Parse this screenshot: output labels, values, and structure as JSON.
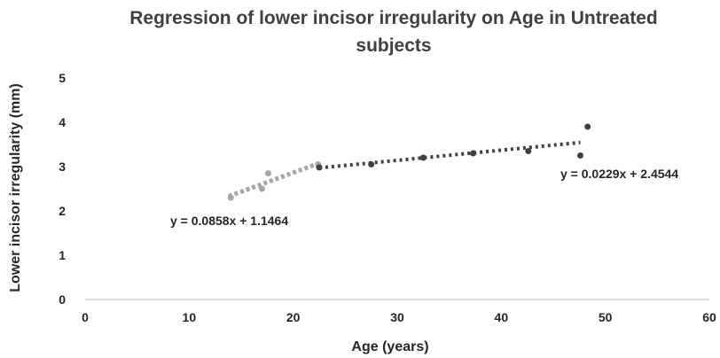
{
  "chart_data": {
    "type": "scatter",
    "title_lines": [
      "Regression of lower incisor irregularity  on Age in Untreated",
      "subjects"
    ],
    "xlabel": "Age (years)",
    "ylabel": "Lower incisor irregularity (mm)",
    "xlim": [
      0,
      60
    ],
    "ylim": [
      0,
      5
    ],
    "x_ticks": [
      "0",
      "10",
      "20",
      "30",
      "40",
      "50",
      "60"
    ],
    "y_ticks": [
      "0",
      "1",
      "2",
      "3",
      "4",
      "5"
    ],
    "grid": false,
    "legend": "none",
    "series": [
      {
        "color": "#a6a6a6",
        "points": [
          {
            "x": 14.0,
            "y": 2.3
          },
          {
            "x": 17.0,
            "y": 2.5
          },
          {
            "x": 17.6,
            "y": 2.85
          },
          {
            "x": 22.4,
            "y": 3.05
          }
        ],
        "trendline": {
          "slope": 0.0858,
          "intercept": 1.1464,
          "x_range": [
            13.8,
            22.6
          ],
          "style": "dotted"
        },
        "equation_label": "y = 0.0858x + 1.1464"
      },
      {
        "color": "#404040",
        "points": [
          {
            "x": 22.5,
            "y": 2.98
          },
          {
            "x": 27.5,
            "y": 3.05
          },
          {
            "x": 32.5,
            "y": 3.2
          },
          {
            "x": 37.3,
            "y": 3.3
          },
          {
            "x": 42.6,
            "y": 3.35
          },
          {
            "x": 47.6,
            "y": 3.25
          },
          {
            "x": 48.3,
            "y": 3.9
          }
        ],
        "trendline": {
          "slope": 0.0229,
          "intercept": 2.4544,
          "x_range": [
            22.5,
            47.6
          ],
          "style": "dotted"
        },
        "equation_label": "y = 0.0229x + 2.4544"
      }
    ]
  }
}
